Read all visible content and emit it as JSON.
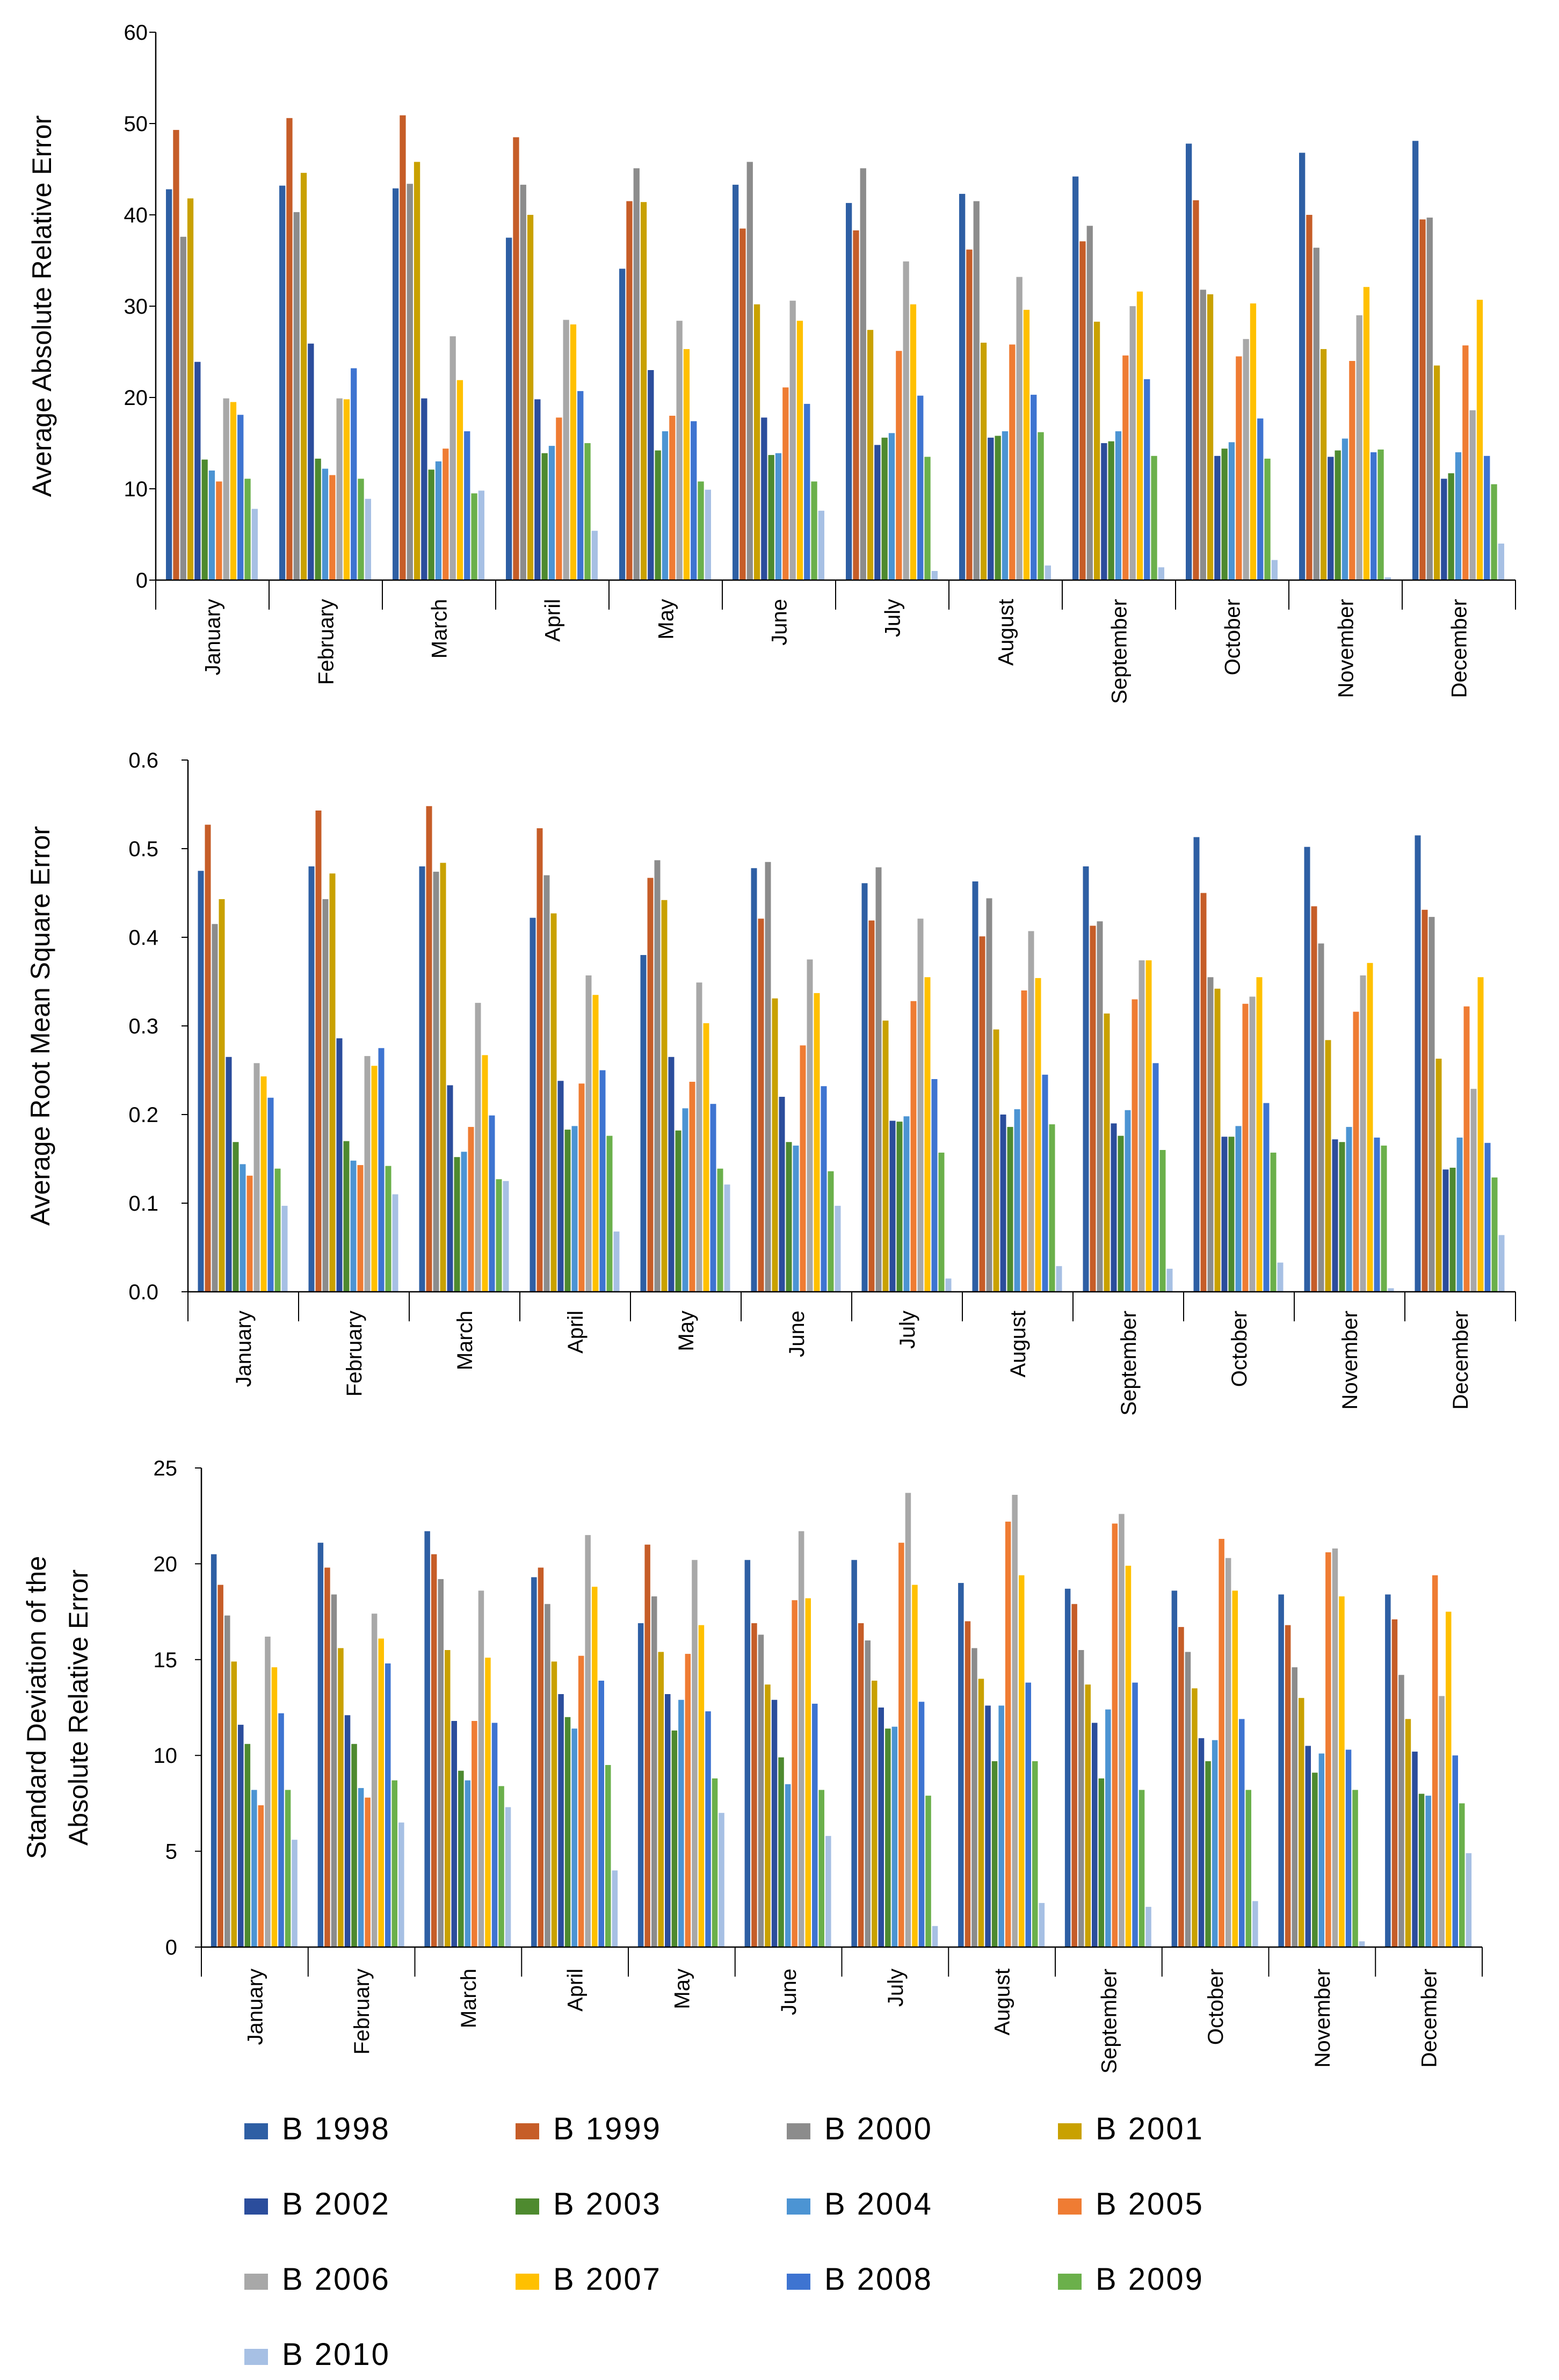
{
  "series_styles": {
    "names": [
      "B 1998",
      "B 1999",
      "B 2000",
      "B 2001",
      "B 2002",
      "B 2003",
      "B 2004",
      "B 2005",
      "B 2006",
      "B 2007",
      "B 2008",
      "B 2009",
      "B 2010"
    ],
    "colors": [
      "#2E5FA4",
      "#C65D28",
      "#8C8C8C",
      "#C9A100",
      "#2B4D9C",
      "#4E8A2F",
      "#4C94D3",
      "#EF7C33",
      "#A8A8A8",
      "#FFC000",
      "#3E74D1",
      "#6BB04B",
      "#A7C0E4"
    ]
  },
  "chart_data": [
    {
      "type": "bar",
      "ylabel": "Average Absolute Relative Error",
      "ylim": [
        0,
        60
      ],
      "yticks": [
        "0",
        "10",
        "20",
        "30",
        "40",
        "50",
        "60"
      ],
      "categories": [
        "January",
        "February",
        "March",
        "April",
        "May",
        "June",
        "July",
        "August",
        "September",
        "October",
        "November",
        "December"
      ],
      "series": [
        {
          "name": "B 1998",
          "values": [
            42.8,
            43.2,
            42.9,
            37.5,
            34.1,
            43.3,
            41.3,
            42.3,
            44.2,
            47.8,
            46.8,
            48.1
          ]
        },
        {
          "name": "B 1999",
          "values": [
            49.3,
            50.6,
            50.9,
            48.5,
            41.5,
            38.5,
            38.3,
            36.2,
            37.1,
            41.6,
            40.0,
            39.5
          ]
        },
        {
          "name": "B 2000",
          "values": [
            37.6,
            40.3,
            43.4,
            43.3,
            45.1,
            45.8,
            45.1,
            41.5,
            38.8,
            31.8,
            36.4,
            39.7
          ]
        },
        {
          "name": "B 2001",
          "values": [
            41.8,
            44.6,
            45.8,
            40.0,
            41.4,
            30.2,
            27.4,
            26.0,
            28.3,
            31.3,
            25.3,
            23.5
          ]
        },
        {
          "name": "B 2002",
          "values": [
            23.9,
            25.9,
            19.9,
            19.8,
            23.0,
            17.8,
            14.8,
            15.6,
            15.0,
            13.6,
            13.5,
            11.1
          ]
        },
        {
          "name": "B 2003",
          "values": [
            13.2,
            13.3,
            12.1,
            13.9,
            14.2,
            13.7,
            15.6,
            15.8,
            15.2,
            14.4,
            14.2,
            11.7
          ]
        },
        {
          "name": "B 2004",
          "values": [
            12.0,
            12.2,
            13.0,
            14.7,
            16.3,
            13.9,
            16.1,
            16.3,
            16.3,
            15.1,
            15.5,
            14.0
          ]
        },
        {
          "name": "B 2005",
          "values": [
            10.8,
            11.5,
            14.4,
            17.8,
            18.0,
            21.1,
            25.1,
            25.8,
            24.6,
            24.5,
            24.0,
            25.7
          ]
        },
        {
          "name": "B 2006",
          "values": [
            19.9,
            19.9,
            26.7,
            28.5,
            28.4,
            30.6,
            34.9,
            33.2,
            30.0,
            26.4,
            29.0,
            18.6
          ]
        },
        {
          "name": "B 2007",
          "values": [
            19.5,
            19.8,
            21.9,
            28.0,
            25.3,
            28.4,
            30.2,
            29.6,
            31.6,
            30.3,
            32.1,
            30.7
          ]
        },
        {
          "name": "B 2008",
          "values": [
            18.1,
            23.2,
            16.3,
            20.7,
            17.4,
            19.3,
            20.2,
            20.3,
            22.0,
            17.7,
            14.0,
            13.6
          ]
        },
        {
          "name": "B 2009",
          "values": [
            11.1,
            11.1,
            9.5,
            15.0,
            10.8,
            10.8,
            13.5,
            16.2,
            13.6,
            13.3,
            14.3,
            10.5
          ]
        },
        {
          "name": "B 2010",
          "values": [
            7.8,
            8.9,
            9.8,
            5.4,
            9.9,
            7.6,
            1.0,
            1.6,
            1.4,
            2.2,
            0.3,
            4.0
          ]
        }
      ]
    },
    {
      "type": "bar",
      "ylabel": "Average Root Mean Square Error",
      "ylim": [
        0,
        0.6
      ],
      "yticks": [
        "0.0",
        "0.1",
        "0.2",
        "0.3",
        "0.4",
        "0.5",
        "0.6"
      ],
      "categories": [
        "January",
        "February",
        "March",
        "April",
        "May",
        "June",
        "July",
        "August",
        "September",
        "October",
        "November",
        "December"
      ],
      "series": [
        {
          "name": "B 1998",
          "values": [
            0.475,
            0.48,
            0.48,
            0.422,
            0.38,
            0.478,
            0.461,
            0.463,
            0.48,
            0.513,
            0.502,
            0.515
          ]
        },
        {
          "name": "B 1999",
          "values": [
            0.527,
            0.543,
            0.548,
            0.523,
            0.467,
            0.421,
            0.419,
            0.401,
            0.413,
            0.45,
            0.435,
            0.431
          ]
        },
        {
          "name": "B 2000",
          "values": [
            0.415,
            0.443,
            0.474,
            0.47,
            0.487,
            0.485,
            0.479,
            0.444,
            0.418,
            0.355,
            0.393,
            0.423
          ]
        },
        {
          "name": "B 2001",
          "values": [
            0.443,
            0.472,
            0.484,
            0.427,
            0.442,
            0.331,
            0.306,
            0.296,
            0.314,
            0.342,
            0.284,
            0.263
          ]
        },
        {
          "name": "B 2002",
          "values": [
            0.265,
            0.286,
            0.233,
            0.238,
            0.265,
            0.22,
            0.193,
            0.2,
            0.19,
            0.175,
            0.172,
            0.138
          ]
        },
        {
          "name": "B 2003",
          "values": [
            0.169,
            0.17,
            0.152,
            0.183,
            0.182,
            0.169,
            0.192,
            0.186,
            0.176,
            0.175,
            0.169,
            0.14
          ]
        },
        {
          "name": "B 2004",
          "values": [
            0.144,
            0.148,
            0.158,
            0.187,
            0.207,
            0.165,
            0.198,
            0.206,
            0.205,
            0.187,
            0.186,
            0.174
          ]
        },
        {
          "name": "B 2005",
          "values": [
            0.131,
            0.143,
            0.186,
            0.235,
            0.237,
            0.278,
            0.328,
            0.34,
            0.33,
            0.325,
            0.316,
            0.322
          ]
        },
        {
          "name": "B 2006",
          "values": [
            0.258,
            0.266,
            0.326,
            0.357,
            0.349,
            0.375,
            0.421,
            0.407,
            0.374,
            0.333,
            0.357,
            0.229
          ]
        },
        {
          "name": "B 2007",
          "values": [
            0.243,
            0.255,
            0.267,
            0.335,
            0.303,
            0.337,
            0.355,
            0.354,
            0.374,
            0.355,
            0.371,
            0.355
          ]
        },
        {
          "name": "B 2008",
          "values": [
            0.219,
            0.275,
            0.199,
            0.25,
            0.212,
            0.232,
            0.24,
            0.245,
            0.258,
            0.213,
            0.174,
            0.168
          ]
        },
        {
          "name": "B 2009",
          "values": [
            0.139,
            0.142,
            0.127,
            0.176,
            0.139,
            0.136,
            0.157,
            0.189,
            0.16,
            0.157,
            0.165,
            0.129
          ]
        },
        {
          "name": "B 2010",
          "values": [
            0.097,
            0.11,
            0.125,
            0.068,
            0.121,
            0.097,
            0.015,
            0.029,
            0.026,
            0.033,
            0.004,
            0.064
          ]
        }
      ]
    },
    {
      "type": "bar",
      "ylabel": "Standard Deviation of the Absolute Relative Error",
      "ylabel_lines": [
        "Standard Deviation of the",
        "Absolute Relative Error"
      ],
      "ylim": [
        0,
        25
      ],
      "yticks": [
        "0",
        "5",
        "10",
        "15",
        "20",
        "25"
      ],
      "categories": [
        "January",
        "February",
        "March",
        "April",
        "May",
        "June",
        "July",
        "August",
        "September",
        "October",
        "November",
        "December"
      ],
      "series": [
        {
          "name": "B 1998",
          "values": [
            20.5,
            21.1,
            21.7,
            19.3,
            16.9,
            20.2,
            20.2,
            19.0,
            18.7,
            18.6,
            18.4,
            18.4
          ]
        },
        {
          "name": "B 1999",
          "values": [
            18.9,
            19.8,
            20.5,
            19.8,
            21.0,
            16.9,
            16.9,
            17.0,
            17.9,
            16.7,
            16.8,
            17.1
          ]
        },
        {
          "name": "B 2000",
          "values": [
            17.3,
            18.4,
            19.2,
            17.9,
            18.3,
            16.3,
            16.0,
            15.6,
            15.5,
            15.4,
            14.6,
            14.2
          ]
        },
        {
          "name": "B 2001",
          "values": [
            14.9,
            15.6,
            15.5,
            14.9,
            15.4,
            13.7,
            13.9,
            14.0,
            13.7,
            13.5,
            13.0,
            11.9
          ]
        },
        {
          "name": "B 2002",
          "values": [
            11.6,
            12.1,
            11.8,
            13.2,
            13.2,
            12.9,
            12.5,
            12.6,
            11.7,
            10.9,
            10.5,
            10.2
          ]
        },
        {
          "name": "B 2003",
          "values": [
            10.6,
            10.6,
            9.2,
            12.0,
            11.3,
            9.9,
            11.4,
            9.7,
            8.8,
            9.7,
            9.1,
            8.0
          ]
        },
        {
          "name": "B 2004",
          "values": [
            8.2,
            8.3,
            8.7,
            11.4,
            12.9,
            8.5,
            11.5,
            12.6,
            12.4,
            10.8,
            10.1,
            7.9
          ]
        },
        {
          "name": "B 2005",
          "values": [
            7.4,
            7.8,
            11.8,
            15.2,
            15.3,
            18.1,
            21.1,
            22.2,
            22.1,
            21.3,
            20.6,
            19.4
          ]
        },
        {
          "name": "B 2006",
          "values": [
            16.2,
            17.4,
            18.6,
            21.5,
            20.2,
            21.7,
            23.7,
            23.6,
            22.6,
            20.3,
            20.8,
            13.1
          ]
        },
        {
          "name": "B 2007",
          "values": [
            14.6,
            16.1,
            15.1,
            18.8,
            16.8,
            18.2,
            18.9,
            19.4,
            19.9,
            18.6,
            18.3,
            17.5
          ]
        },
        {
          "name": "B 2008",
          "values": [
            12.2,
            14.8,
            11.7,
            13.9,
            12.3,
            12.7,
            12.8,
            13.8,
            13.8,
            11.9,
            10.3,
            10.0
          ]
        },
        {
          "name": "B 2009",
          "values": [
            8.2,
            8.7,
            8.4,
            9.5,
            8.8,
            8.2,
            7.9,
            9.7,
            8.2,
            8.2,
            8.2,
            7.5
          ]
        },
        {
          "name": "B 2010",
          "values": [
            5.6,
            6.5,
            7.3,
            4.0,
            7.0,
            5.8,
            1.1,
            2.3,
            2.1,
            2.4,
            0.3,
            4.9
          ]
        }
      ]
    }
  ]
}
